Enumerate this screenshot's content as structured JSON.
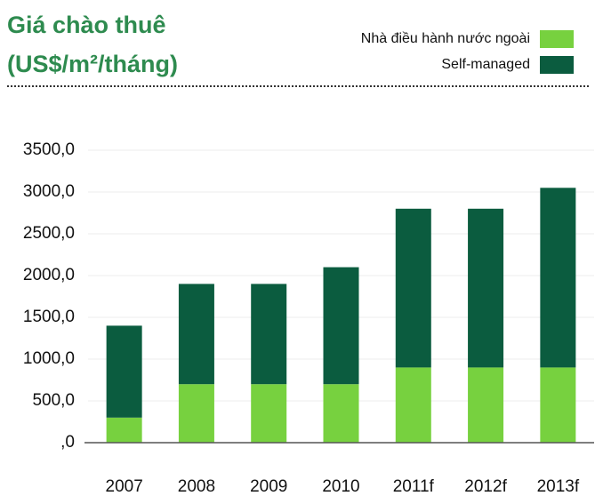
{
  "chart_data": {
    "type": "stacked_bar",
    "title": [
      "Giá chào thuê",
      "(US$/m²/tháng)"
    ],
    "categories": [
      "2007",
      "2008",
      "2009",
      "2010",
      "2011f",
      "2012f",
      "2013f"
    ],
    "series": [
      {
        "name": "Nhà điều hành nước ngoài",
        "color": "#77d13f",
        "values": [
          300,
          700,
          700,
          700,
          900,
          900,
          900
        ]
      },
      {
        "name": "Self-managed",
        "color": "#0b5c3f",
        "values": [
          1100,
          1200,
          1200,
          1400,
          1900,
          1900,
          2150
        ]
      }
    ],
    "ylim": [
      0,
      3500
    ],
    "yticks": [
      {
        "value": 0,
        "label": ",0"
      },
      {
        "value": 500,
        "label": "500,0"
      },
      {
        "value": 1000,
        "label": "1000,0"
      },
      {
        "value": 1500,
        "label": "1500,0"
      },
      {
        "value": 2000,
        "label": "2000,0"
      },
      {
        "value": 2500,
        "label": "2500,0"
      },
      {
        "value": 3000,
        "label": "3000,0"
      },
      {
        "value": 3500,
        "label": "3500,0"
      }
    ],
    "grid": true
  }
}
